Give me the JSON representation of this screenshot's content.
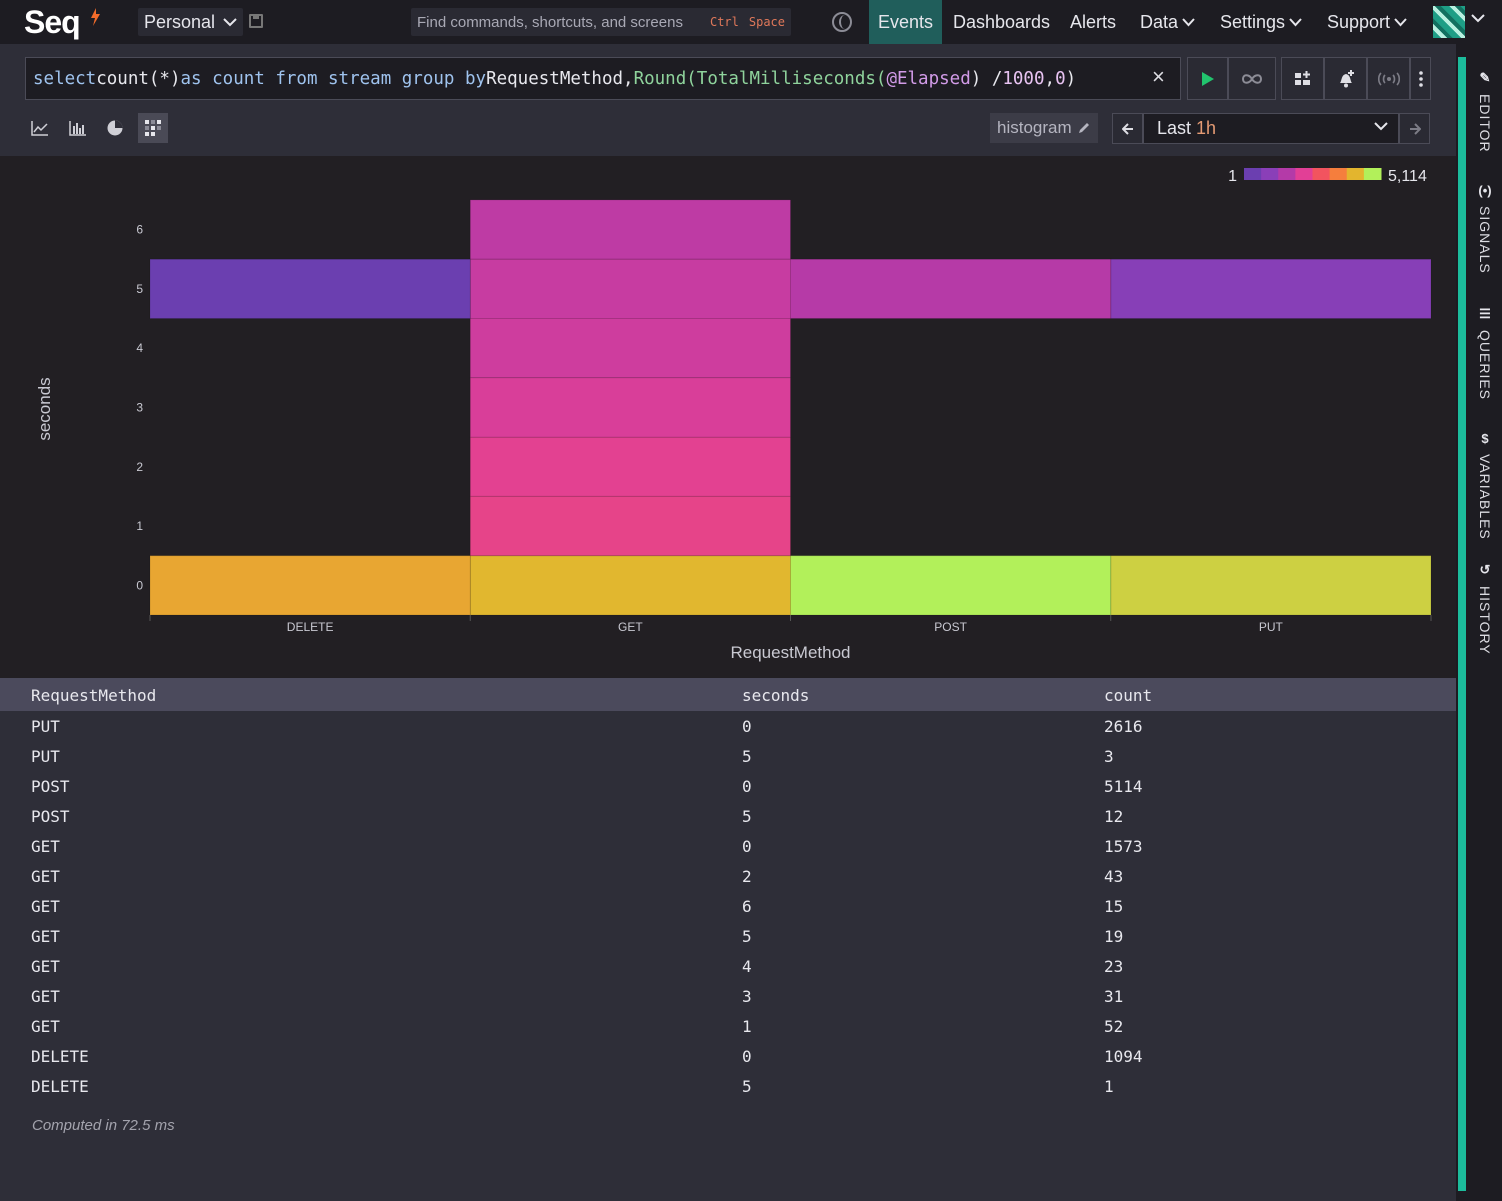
{
  "app": {
    "logo": "Seq",
    "workspace": "Personal",
    "command_placeholder": "Find commands, shortcuts, and screens",
    "shortcut_ctrl": "Ctrl",
    "shortcut_space": "Space"
  },
  "nav": {
    "events": "Events",
    "dashboards": "Dashboards",
    "alerts": "Alerts",
    "data": "Data",
    "settings": "Settings",
    "support": "Support"
  },
  "query": {
    "parts": [
      {
        "t": "select ",
        "c": "kw"
      },
      {
        "t": "count(*) ",
        "c": "plain"
      },
      {
        "t": "as count from stream group by ",
        "c": "kw"
      },
      {
        "t": "RequestMethod, ",
        "c": "plain"
      },
      {
        "t": "Round(TotalMilliseconds(",
        "c": "fn"
      },
      {
        "t": "@Elapsed",
        "c": "prop"
      },
      {
        "t": ") / ",
        "c": "plain"
      },
      {
        "t": "1000",
        "c": "num"
      },
      {
        "t": ", ",
        "c": "plain"
      },
      {
        "t": "0",
        "c": "num"
      },
      {
        "t": ")",
        "c": "plain"
      }
    ]
  },
  "toolbar": {
    "histogram_label": "histogram",
    "range_prefix": "Last",
    "range_value": "1h"
  },
  "colors": {
    "accent": "#1cbc9c",
    "legend_min": "#6b3fb0",
    "legend_max": "#b2f05a"
  },
  "chart_data": {
    "type": "heatmap",
    "xlabel": "RequestMethod",
    "ylabel": "seconds",
    "categories": [
      "DELETE",
      "GET",
      "POST",
      "PUT"
    ],
    "y_ticks": [
      0,
      1,
      2,
      3,
      4,
      5,
      6
    ],
    "legend_min": "1",
    "legend_max": "5,114",
    "cells": [
      {
        "x": "PUT",
        "y": 0,
        "value": 2616
      },
      {
        "x": "PUT",
        "y": 5,
        "value": 3
      },
      {
        "x": "POST",
        "y": 0,
        "value": 5114
      },
      {
        "x": "POST",
        "y": 5,
        "value": 12
      },
      {
        "x": "GET",
        "y": 0,
        "value": 1573
      },
      {
        "x": "GET",
        "y": 2,
        "value": 43
      },
      {
        "x": "GET",
        "y": 6,
        "value": 15
      },
      {
        "x": "GET",
        "y": 5,
        "value": 19
      },
      {
        "x": "GET",
        "y": 4,
        "value": 23
      },
      {
        "x": "GET",
        "y": 3,
        "value": 31
      },
      {
        "x": "GET",
        "y": 1,
        "value": 52
      },
      {
        "x": "DELETE",
        "y": 0,
        "value": 1094
      },
      {
        "x": "DELETE",
        "y": 5,
        "value": 1
      }
    ]
  },
  "table": {
    "headers": [
      "RequestMethod",
      "seconds",
      "count"
    ],
    "rows": [
      [
        "PUT",
        "0",
        "2616"
      ],
      [
        "PUT",
        "5",
        "3"
      ],
      [
        "POST",
        "0",
        "5114"
      ],
      [
        "POST",
        "5",
        "12"
      ],
      [
        "GET",
        "0",
        "1573"
      ],
      [
        "GET",
        "2",
        "43"
      ],
      [
        "GET",
        "6",
        "15"
      ],
      [
        "GET",
        "5",
        "19"
      ],
      [
        "GET",
        "4",
        "23"
      ],
      [
        "GET",
        "3",
        "31"
      ],
      [
        "GET",
        "1",
        "52"
      ],
      [
        "DELETE",
        "0",
        "1094"
      ],
      [
        "DELETE",
        "5",
        "1"
      ]
    ],
    "computed": "Computed in 72.5 ms"
  },
  "sidebar": {
    "items": [
      "EDITOR",
      "SIGNALS",
      "QUERIES",
      "VARIABLES",
      "HISTORY"
    ]
  }
}
